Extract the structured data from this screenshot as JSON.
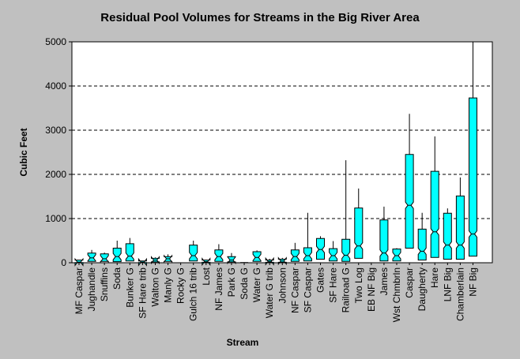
{
  "chart_data": {
    "type": "box",
    "title": "Residual Pool Volumes for Streams in the Big River Area",
    "xlabel": "Stream",
    "ylabel": "Cubic Feet",
    "ylim": [
      0,
      5000
    ],
    "yticks": [
      0,
      1000,
      2000,
      3000,
      4000,
      5000
    ],
    "grid": "horizontal dashed",
    "colors": {
      "box": "#00ffff",
      "background": "#c0c0c0",
      "plot": "#ffffff"
    },
    "boxes": [
      {
        "name": "MF Caspar",
        "whisker_low": 0,
        "q1": 5,
        "median": 15,
        "q3": 60,
        "whisker_high": 60
      },
      {
        "name": "Jughandle",
        "whisker_low": 0,
        "q1": 30,
        "median": 110,
        "q3": 220,
        "whisker_high": 290
      },
      {
        "name": "Snuffins",
        "whisker_low": 0,
        "q1": 30,
        "median": 90,
        "q3": 200,
        "whisker_high": 230
      },
      {
        "name": "Soda",
        "whisker_low": 0,
        "q1": 25,
        "median": 140,
        "q3": 330,
        "whisker_high": 500
      },
      {
        "name": "Bunker G",
        "whisker_low": 0,
        "q1": 40,
        "median": 150,
        "q3": 430,
        "whisker_high": 560
      },
      {
        "name": "SF Hare trib",
        "whisker_low": 0,
        "q1": 5,
        "median": 15,
        "q3": 40,
        "whisker_high": 40
      },
      {
        "name": "Walton G",
        "whisker_low": 0,
        "q1": 20,
        "median": 60,
        "q3": 100,
        "whisker_high": 120
      },
      {
        "name": "Manly G",
        "whisker_low": 0,
        "q1": 30,
        "median": 90,
        "q3": 140,
        "whisker_high": 190
      },
      {
        "name": "Rocky G",
        "whisker_low": 0,
        "q1": 0,
        "median": 0,
        "q3": 0,
        "whisker_high": 0
      },
      {
        "name": "Gulch 16 trib",
        "whisker_low": 0,
        "q1": 40,
        "median": 160,
        "q3": 400,
        "whisker_high": 500
      },
      {
        "name": "Lost",
        "whisker_low": 0,
        "q1": 10,
        "median": 25,
        "q3": 60,
        "whisker_high": 70
      },
      {
        "name": "NF James",
        "whisker_low": 0,
        "q1": 30,
        "median": 140,
        "q3": 290,
        "whisker_high": 420
      },
      {
        "name": "Park G",
        "whisker_low": 0,
        "q1": 20,
        "median": 60,
        "q3": 140,
        "whisker_high": 220
      },
      {
        "name": "Soda G",
        "whisker_low": 0,
        "q1": 0,
        "median": 0,
        "q3": 5,
        "whisker_high": 5
      },
      {
        "name": "Water G",
        "whisker_low": 0,
        "q1": 30,
        "median": 120,
        "q3": 250,
        "whisker_high": 280
      },
      {
        "name": "Water G trib",
        "whisker_low": 0,
        "q1": 10,
        "median": 30,
        "q3": 60,
        "whisker_high": 90
      },
      {
        "name": "Johnson",
        "whisker_low": 0,
        "q1": 10,
        "median": 40,
        "q3": 80,
        "whisker_high": 110
      },
      {
        "name": "NF Caspar",
        "whisker_low": 0,
        "q1": 30,
        "median": 140,
        "q3": 290,
        "whisker_high": 450
      },
      {
        "name": "SF Caspar",
        "whisker_low": 0,
        "q1": 40,
        "median": 160,
        "q3": 340,
        "whisker_high": 1130
      },
      {
        "name": "Gates",
        "whisker_low": 0,
        "q1": 80,
        "median": 300,
        "q3": 550,
        "whisker_high": 600
      },
      {
        "name": "SF Hare",
        "whisker_low": 0,
        "q1": 40,
        "median": 160,
        "q3": 320,
        "whisker_high": 490
      },
      {
        "name": "Railroad G",
        "whisker_low": 0,
        "q1": 30,
        "median": 170,
        "q3": 530,
        "whisker_high": 2320
      },
      {
        "name": "Two Log",
        "whisker_low": 0,
        "q1": 100,
        "median": 380,
        "q3": 1240,
        "whisker_high": 1680
      },
      {
        "name": "EB NF Big",
        "whisker_low": 0,
        "q1": 0,
        "median": 0,
        "q3": 0,
        "whisker_high": 0
      },
      {
        "name": "James",
        "whisker_low": 0,
        "q1": 40,
        "median": 220,
        "q3": 970,
        "whisker_high": 1270
      },
      {
        "name": "Wst Chmbrln",
        "whisker_low": 0,
        "q1": 40,
        "median": 160,
        "q3": 310,
        "whisker_high": 330
      },
      {
        "name": "Caspar",
        "whisker_low": 0,
        "q1": 330,
        "median": 1300,
        "q3": 2450,
        "whisker_high": 3370
      },
      {
        "name": "Daugherty",
        "whisker_low": 0,
        "q1": 60,
        "median": 260,
        "q3": 760,
        "whisker_high": 1130
      },
      {
        "name": "Hare",
        "whisker_low": 0,
        "q1": 120,
        "median": 700,
        "q3": 2070,
        "whisker_high": 2860
      },
      {
        "name": "LNF Big",
        "whisker_low": 0,
        "q1": 80,
        "median": 400,
        "q3": 1120,
        "whisker_high": 1230
      },
      {
        "name": "Chamberlain",
        "whisker_low": 0,
        "q1": 80,
        "median": 400,
        "q3": 1510,
        "whisker_high": 1930
      },
      {
        "name": "NF Big",
        "whisker_low": 0,
        "q1": 150,
        "median": 650,
        "q3": 3730,
        "whisker_high": 5000
      }
    ]
  }
}
